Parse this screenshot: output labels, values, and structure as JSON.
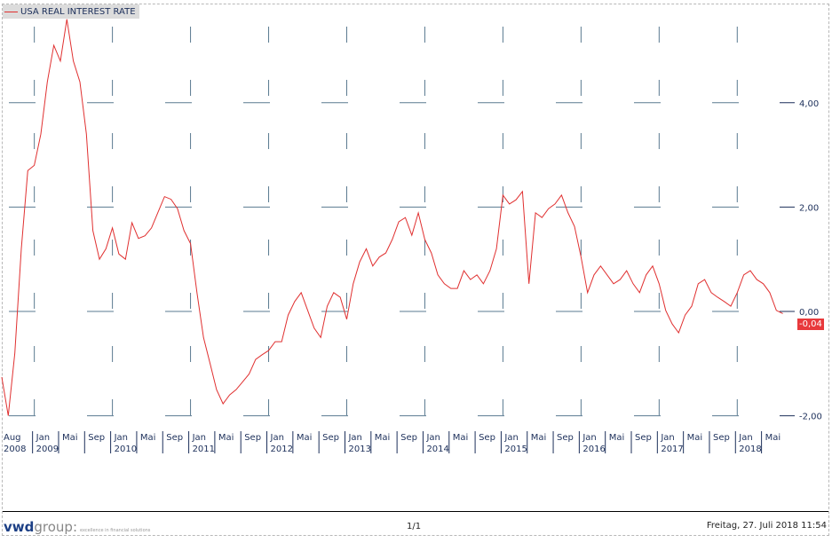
{
  "chart_data": {
    "type": "line",
    "title": "USA REAL INTEREST RATE",
    "series": [
      {
        "name": "USA REAL INTEREST RATE",
        "color": "#e03030",
        "start": "2008-08",
        "frequency": "monthly",
        "values": [
          -1.26,
          -2.0,
          -0.8,
          1.2,
          2.7,
          2.8,
          3.4,
          4.4,
          5.1,
          4.8,
          5.6,
          4.8,
          4.4,
          3.4,
          1.55,
          1.0,
          1.2,
          1.6,
          1.1,
          1.0,
          1.7,
          1.4,
          1.45,
          1.6,
          1.9,
          2.2,
          2.15,
          1.97,
          1.55,
          1.3,
          0.35,
          -0.5,
          -1.0,
          -1.5,
          -1.77,
          -1.6,
          -1.5,
          -1.35,
          -1.2,
          -0.92,
          -0.83,
          -0.75,
          -0.58,
          -0.58,
          -0.07,
          0.19,
          0.36,
          0.02,
          -0.32,
          -0.5,
          0.1,
          0.36,
          0.27,
          -0.15,
          0.53,
          0.95,
          1.2,
          0.87,
          1.04,
          1.12,
          1.38,
          1.72,
          1.8,
          1.46,
          1.89,
          1.38,
          1.12,
          0.7,
          0.53,
          0.44,
          0.44,
          0.78,
          0.61,
          0.7,
          0.53,
          0.78,
          1.2,
          2.23,
          2.06,
          2.14,
          2.3,
          0.53,
          1.89,
          1.8,
          1.97,
          2.06,
          2.23,
          1.89,
          1.63,
          1.04,
          0.36,
          0.7,
          0.87,
          0.7,
          0.53,
          0.61,
          0.78,
          0.53,
          0.36,
          0.7,
          0.87,
          0.53,
          0.02,
          -0.24,
          -0.41,
          -0.07,
          0.1,
          0.53,
          0.61,
          0.36,
          0.27,
          0.19,
          0.1,
          0.36,
          0.7,
          0.78,
          0.61,
          0.53,
          0.36,
          0.02,
          -0.04
        ]
      }
    ],
    "last_value_label": "-0,04",
    "y_ticks": [
      {
        "value": 4,
        "label": "4,00"
      },
      {
        "value": 2,
        "label": "2,00"
      },
      {
        "value": 0,
        "label": "0,00"
      },
      {
        "value": -2,
        "label": "-2,00"
      }
    ],
    "ylim": [
      -2.2,
      6
    ],
    "x_ticks": [
      {
        "month": 0,
        "label": "Aug",
        "year": "2008"
      },
      {
        "month": 5,
        "label": "Jan",
        "year": "2009"
      },
      {
        "month": 9,
        "label": "Mai"
      },
      {
        "month": 13,
        "label": "Sep"
      },
      {
        "month": 17,
        "label": "Jan",
        "year": "2010"
      },
      {
        "month": 21,
        "label": "Mai"
      },
      {
        "month": 25,
        "label": "Sep"
      },
      {
        "month": 29,
        "label": "Jan",
        "year": "2011"
      },
      {
        "month": 33,
        "label": "Mai"
      },
      {
        "month": 37,
        "label": "Sep"
      },
      {
        "month": 41,
        "label": "Jan",
        "year": "2012"
      },
      {
        "month": 45,
        "label": "Mai"
      },
      {
        "month": 49,
        "label": "Sep"
      },
      {
        "month": 53,
        "label": "Jan",
        "year": "2013"
      },
      {
        "month": 57,
        "label": "Mai"
      },
      {
        "month": 61,
        "label": "Sep"
      },
      {
        "month": 65,
        "label": "Jan",
        "year": "2014"
      },
      {
        "month": 69,
        "label": "Mai"
      },
      {
        "month": 73,
        "label": "Sep"
      },
      {
        "month": 77,
        "label": "Jan",
        "year": "2015"
      },
      {
        "month": 81,
        "label": "Mai"
      },
      {
        "month": 85,
        "label": "Sep"
      },
      {
        "month": 89,
        "label": "Jan",
        "year": "2016"
      },
      {
        "month": 93,
        "label": "Mai"
      },
      {
        "month": 97,
        "label": "Sep"
      },
      {
        "month": 101,
        "label": "Jan",
        "year": "2017"
      },
      {
        "month": 105,
        "label": "Mai"
      },
      {
        "month": 109,
        "label": "Sep"
      },
      {
        "month": 113,
        "label": "Jan",
        "year": "2018"
      },
      {
        "month": 117,
        "label": "Mai"
      }
    ],
    "grid": true,
    "legend": "top-left"
  },
  "footer": {
    "logo_main": "vwd",
    "logo_rest": "group:",
    "logo_tagline": "excellence in financial solutions",
    "page": "1/1",
    "date": "Freitag, 27. Juli 2018 11:54"
  }
}
